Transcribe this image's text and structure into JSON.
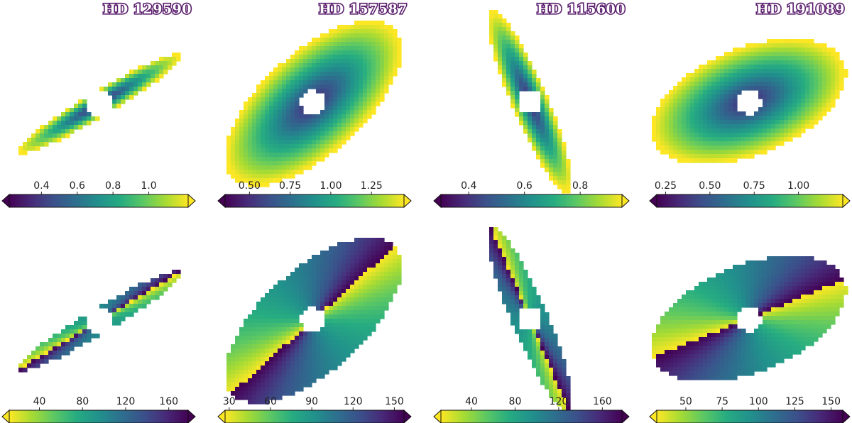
{
  "chart_data": [
    {
      "type": "heatmap",
      "title": "HD 129590",
      "row": "top",
      "colormap": "viridis",
      "vmin": 0.22,
      "vmax": 1.22,
      "ticks": [
        0.4,
        0.6,
        0.8,
        1.0
      ],
      "tick_labels": [
        "0.4",
        "0.6",
        "0.8",
        "1.0"
      ],
      "ellipse_semi_major": 1.0,
      "ellipse_axis_ratio": 0.13,
      "position_angle_deg": 31,
      "field": "radius"
    },
    {
      "type": "heatmap",
      "title": "HD 157587",
      "row": "top",
      "colormap": "viridis",
      "vmin": 0.35,
      "vmax": 1.45,
      "ticks": [
        0.5,
        0.75,
        1.0,
        1.25
      ],
      "tick_labels": [
        "0.50",
        "0.75",
        "1.00",
        "1.25"
      ],
      "ellipse_semi_major": 1.0,
      "ellipse_axis_ratio": 0.46,
      "position_angle_deg": 42,
      "field": "radius"
    },
    {
      "type": "heatmap",
      "title": "HD 115600",
      "row": "top",
      "colormap": "viridis",
      "vmin": 0.3,
      "vmax": 0.95,
      "ticks": [
        0.4,
        0.6,
        0.8
      ],
      "tick_labels": [
        "0.4",
        "0.6",
        "0.8"
      ],
      "ellipse_semi_major": 1.0,
      "ellipse_axis_ratio": 0.18,
      "position_angle_deg": -67,
      "field": "radius"
    },
    {
      "type": "heatmap",
      "title": "HD 191089",
      "row": "top",
      "colormap": "viridis",
      "vmin": 0.2,
      "vmax": 1.25,
      "ticks": [
        0.25,
        0.5,
        0.75,
        1.0
      ],
      "tick_labels": [
        "0.25",
        "0.50",
        "0.75",
        "1.00"
      ],
      "ellipse_semi_major": 1.0,
      "ellipse_axis_ratio": 0.52,
      "position_angle_deg": 22,
      "field": "radius"
    },
    {
      "type": "heatmap",
      "title": "",
      "row": "bottom",
      "colormap": "viridis_r",
      "vmin": 12,
      "vmax": 178,
      "ticks": [
        40,
        80,
        120,
        160
      ],
      "tick_labels": [
        "40",
        "80",
        "120",
        "160"
      ],
      "ellipse_semi_major": 1.0,
      "ellipse_axis_ratio": 0.13,
      "position_angle_deg": 31,
      "field": "angle"
    },
    {
      "type": "heatmap",
      "title": "",
      "row": "bottom",
      "colormap": "viridis_r",
      "vmin": 27,
      "vmax": 157,
      "ticks": [
        30,
        60,
        90,
        120,
        150
      ],
      "tick_labels": [
        "30",
        "60",
        "90",
        "120",
        "150"
      ],
      "ellipse_semi_major": 1.0,
      "ellipse_axis_ratio": 0.46,
      "position_angle_deg": 42,
      "field": "angle"
    },
    {
      "type": "heatmap",
      "title": "",
      "row": "bottom",
      "colormap": "viridis_r",
      "vmin": 12,
      "vmax": 178,
      "ticks": [
        40,
        80,
        120,
        160
      ],
      "tick_labels": [
        "40",
        "80",
        "120",
        "160"
      ],
      "ellipse_semi_major": 1.0,
      "ellipse_axis_ratio": 0.18,
      "position_angle_deg": -67,
      "field": "angle"
    },
    {
      "type": "heatmap",
      "title": "",
      "row": "bottom",
      "colormap": "viridis_r",
      "vmin": 30,
      "vmax": 158,
      "ticks": [
        50,
        75,
        100,
        125,
        150
      ],
      "tick_labels": [
        "50",
        "75",
        "100",
        "125",
        "150"
      ],
      "ellipse_semi_major": 1.0,
      "ellipse_axis_ratio": 0.52,
      "position_angle_deg": 22,
      "field": "angle"
    }
  ]
}
